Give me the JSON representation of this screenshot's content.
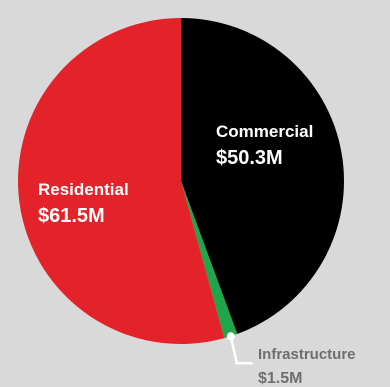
{
  "chart_data": {
    "type": "pie",
    "start_angle": "top",
    "direction": "clockwise",
    "slices": [
      {
        "label": "Commercial",
        "value": 50.3,
        "value_label": "$50.3M",
        "color": "#000000",
        "text_color": "#ffffff"
      },
      {
        "label": "Infrastructure",
        "value": 1.5,
        "value_label": "$1.5M",
        "color": "#1fa64a",
        "text_color": "#6f6f6f"
      },
      {
        "label": "Residential",
        "value": 61.5,
        "value_label": "$61.5M",
        "color": "#e3222a",
        "text_color": "#ffffff"
      }
    ],
    "background": "#d9d9d9"
  }
}
